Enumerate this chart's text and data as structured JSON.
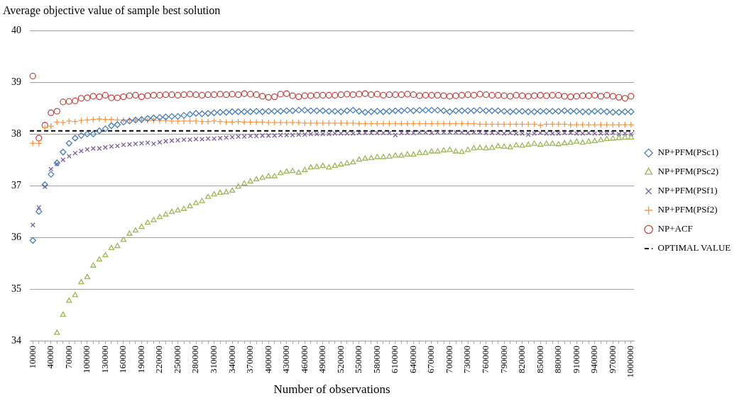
{
  "chart_data": {
    "type": "scatter",
    "title": "Average objective value of sample best solution",
    "xlabel": "Number of observations",
    "categories": [
      "10000",
      null,
      null,
      "40000",
      null,
      null,
      "70000",
      null,
      null,
      "100000",
      null,
      null,
      "130000",
      null,
      null,
      "160000",
      null,
      null,
      "190000",
      null,
      null,
      "220000",
      null,
      null,
      "250000",
      null,
      null,
      "280000",
      null,
      null,
      "310000",
      null,
      null,
      "340000",
      null,
      null,
      "370000",
      null,
      null,
      "400000",
      null,
      null,
      "430000",
      null,
      null,
      "460000",
      null,
      null,
      "490000",
      null,
      null,
      "520000",
      null,
      null,
      "550000",
      null,
      null,
      "580000",
      null,
      null,
      "610000",
      null,
      null,
      "640000",
      null,
      null,
      "670000",
      null,
      null,
      "700000",
      null,
      null,
      "730000",
      null,
      null,
      "760000",
      null,
      null,
      "790000",
      null,
      null,
      "820000",
      null,
      null,
      "850000",
      null,
      null,
      "880000",
      null,
      null,
      "910000",
      null,
      null,
      "940000",
      null,
      null,
      "970000",
      null,
      null,
      "1000000"
    ],
    "ylim": [
      34,
      40
    ],
    "yticks": [
      34,
      35,
      36,
      37,
      38,
      39,
      40
    ],
    "grid": "y",
    "legend": "right",
    "series": [
      {
        "name": "NP+PFM(PSc1)",
        "color": "#4a7ebb",
        "marker": "diamond",
        "values": [
          35.94,
          36.5,
          37.02,
          37.22,
          37.44,
          37.65,
          37.82,
          37.92,
          37.97,
          38.0,
          38.0,
          38.06,
          38.1,
          38.16,
          38.18,
          38.23,
          38.25,
          38.27,
          38.28,
          38.3,
          38.31,
          38.32,
          38.33,
          38.34,
          38.34,
          38.36,
          38.38,
          38.4,
          38.39,
          38.4,
          38.41,
          38.42,
          38.42,
          38.43,
          38.43,
          38.43,
          38.43,
          38.44,
          38.43,
          38.44,
          38.44,
          38.44,
          38.45,
          38.45,
          38.46,
          38.46,
          38.45,
          38.45,
          38.45,
          38.44,
          38.44,
          38.43,
          38.45,
          38.46,
          38.44,
          38.42,
          38.43,
          38.44,
          38.43,
          38.44,
          38.45,
          38.45,
          38.46,
          38.45,
          38.46,
          38.46,
          38.46,
          38.46,
          38.45,
          38.43,
          38.45,
          38.45,
          38.45,
          38.45,
          38.46,
          38.45,
          38.45,
          38.45,
          38.44,
          38.43,
          38.44,
          38.44,
          38.43,
          38.43,
          38.44,
          38.44,
          38.44,
          38.44,
          38.45,
          38.44,
          38.44,
          38.43,
          38.43,
          38.44,
          38.44,
          38.43,
          38.42,
          38.42,
          38.43,
          38.43
        ]
      },
      {
        "name": "NP+PFM(PSc2)",
        "color": "#98b954",
        "marker": "triangle",
        "values": [
          null,
          null,
          null,
          null,
          34.15,
          34.5,
          34.77,
          34.88,
          35.13,
          35.23,
          35.45,
          35.57,
          35.65,
          35.79,
          35.83,
          35.95,
          36.07,
          36.13,
          36.2,
          36.28,
          36.33,
          36.39,
          36.44,
          36.49,
          36.52,
          36.55,
          36.6,
          36.66,
          36.7,
          36.78,
          36.83,
          36.86,
          36.87,
          36.9,
          36.98,
          37.04,
          37.08,
          37.12,
          37.15,
          37.18,
          37.18,
          37.24,
          37.27,
          37.28,
          37.25,
          37.3,
          37.35,
          37.36,
          37.38,
          37.35,
          37.38,
          37.41,
          37.43,
          37.45,
          37.5,
          37.52,
          37.53,
          37.55,
          37.55,
          37.56,
          37.58,
          37.58,
          37.6,
          37.6,
          37.63,
          37.63,
          37.66,
          37.66,
          37.68,
          37.69,
          37.66,
          37.65,
          37.69,
          37.72,
          37.73,
          37.72,
          37.73,
          37.76,
          37.75,
          37.74,
          37.78,
          37.77,
          37.79,
          37.81,
          37.79,
          37.81,
          37.81,
          37.8,
          37.82,
          37.83,
          37.85,
          37.83,
          37.85,
          37.86,
          37.88,
          37.9,
          37.91,
          37.92,
          37.93,
          37.93
        ]
      },
      {
        "name": "NP+PFM(PSf1)",
        "color": "#7d60a0",
        "marker": "cross",
        "values": [
          36.24,
          36.58,
          36.98,
          37.32,
          37.42,
          37.5,
          37.57,
          37.63,
          37.67,
          37.7,
          37.72,
          37.72,
          37.74,
          37.76,
          37.77,
          37.79,
          37.8,
          37.81,
          37.82,
          37.83,
          37.81,
          37.84,
          37.86,
          37.87,
          37.88,
          37.89,
          37.89,
          37.9,
          37.9,
          37.91,
          37.91,
          37.92,
          37.93,
          37.94,
          37.95,
          37.95,
          37.96,
          37.96,
          37.97,
          37.97,
          37.97,
          37.98,
          37.98,
          37.98,
          37.99,
          37.99,
          38.0,
          38.0,
          38.0,
          38.0,
          38.01,
          38.01,
          38.01,
          38.01,
          38.02,
          38.02,
          38.02,
          38.02,
          38.02,
          38.02,
          37.98,
          38.02,
          38.02,
          38.02,
          38.03,
          38.03,
          38.02,
          38.03,
          38.03,
          38.03,
          38.03,
          38.03,
          38.02,
          38.03,
          38.03,
          38.02,
          38.02,
          38.02,
          38.01,
          38.02,
          38.01,
          38.01,
          37.99,
          38.01,
          38.02,
          38.01,
          38.01,
          38.01,
          38.02,
          38.02,
          38.01,
          38.01,
          38.02,
          38.01,
          38.01,
          38.01,
          38.02,
          38.0,
          38.01,
          38.0
        ]
      },
      {
        "name": "NP+PFM(PSf2)",
        "color": "#f79646",
        "marker": "plus",
        "values": [
          37.82,
          37.82,
          38.12,
          38.15,
          38.23,
          38.22,
          38.25,
          38.24,
          38.26,
          38.27,
          38.28,
          38.29,
          38.28,
          38.28,
          38.27,
          38.27,
          38.27,
          38.27,
          38.27,
          38.26,
          38.26,
          38.26,
          38.26,
          38.25,
          38.25,
          38.25,
          38.25,
          38.25,
          38.24,
          38.24,
          38.25,
          38.24,
          38.23,
          38.23,
          38.24,
          38.23,
          38.23,
          38.23,
          38.23,
          38.22,
          38.22,
          38.22,
          38.22,
          38.22,
          38.22,
          38.21,
          38.21,
          38.21,
          38.21,
          38.21,
          38.21,
          38.21,
          38.21,
          38.21,
          38.2,
          38.2,
          38.2,
          38.2,
          38.2,
          38.2,
          38.2,
          38.2,
          38.2,
          38.2,
          38.2,
          38.2,
          38.2,
          38.2,
          38.2,
          38.2,
          38.2,
          38.2,
          38.2,
          38.2,
          38.19,
          38.19,
          38.19,
          38.19,
          38.19,
          38.19,
          38.19,
          38.19,
          38.19,
          38.19,
          38.17,
          38.19,
          38.19,
          38.19,
          38.19,
          38.18,
          38.18,
          38.18,
          38.18,
          38.18,
          38.18,
          38.18,
          38.18,
          38.18,
          38.18,
          38.18
        ]
      },
      {
        "name": "NP+ACF",
        "color": "#be4b48",
        "marker": "circle",
        "values": [
          39.12,
          37.92,
          38.17,
          38.41,
          38.44,
          38.62,
          38.63,
          38.64,
          38.69,
          38.7,
          38.73,
          38.72,
          38.75,
          38.7,
          38.7,
          38.72,
          38.74,
          38.75,
          38.72,
          38.74,
          38.75,
          38.75,
          38.76,
          38.76,
          38.75,
          38.76,
          38.77,
          38.76,
          38.75,
          38.76,
          38.76,
          38.77,
          38.76,
          38.77,
          38.76,
          38.78,
          38.77,
          38.76,
          38.73,
          38.71,
          38.72,
          38.77,
          38.78,
          38.74,
          38.72,
          38.74,
          38.74,
          38.75,
          38.75,
          38.75,
          38.75,
          38.76,
          38.77,
          38.76,
          38.77,
          38.78,
          38.76,
          38.77,
          38.75,
          38.76,
          38.76,
          38.76,
          38.77,
          38.76,
          38.74,
          38.75,
          38.75,
          38.75,
          38.74,
          38.73,
          38.74,
          38.75,
          38.76,
          38.75,
          38.77,
          38.76,
          38.75,
          38.75,
          38.74,
          38.73,
          38.75,
          38.74,
          38.73,
          38.74,
          38.75,
          38.74,
          38.75,
          38.75,
          38.73,
          38.72,
          38.73,
          38.74,
          38.74,
          38.75,
          38.73,
          38.75,
          38.73,
          38.71,
          38.69,
          38.73
        ]
      }
    ],
    "ref_lines": [
      {
        "axis": "y",
        "value": 38.06,
        "label": "OPTIMAL VALUE",
        "color": "#000000",
        "line_style": "dashed"
      }
    ]
  }
}
